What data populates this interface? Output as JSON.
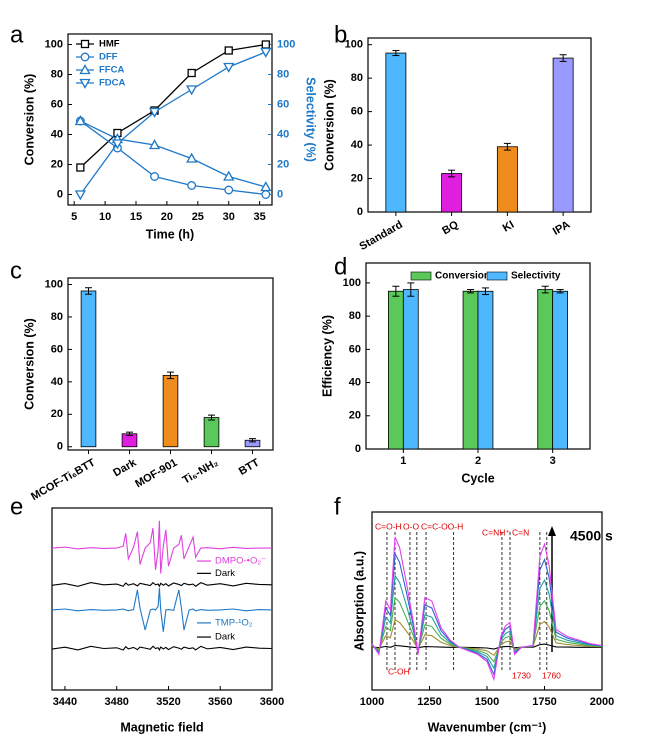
{
  "chart_data": [
    {
      "label": "a",
      "type": "line",
      "x_label": "Time (h)",
      "y_label": "Conversion (%)",
      "y2_label": "Selectivity (%)",
      "y2_color": "#1e78c8",
      "x": [
        6,
        12,
        18,
        24,
        30,
        36
      ],
      "xlim": [
        4,
        37
      ],
      "xticks": [
        5,
        10,
        15,
        20,
        25,
        30,
        35
      ],
      "ylim": [
        -7,
        107
      ],
      "yticks": [
        0,
        20,
        40,
        60,
        80,
        100
      ],
      "y2lim": [
        -7,
        107
      ],
      "y2ticks": [
        0,
        20,
        40,
        60,
        80,
        100
      ],
      "legend": "upper left",
      "series": [
        {
          "name": "HMF",
          "color": "#000000",
          "marker": "square",
          "values": [
            18,
            41,
            56,
            81,
            96,
            100
          ]
        },
        {
          "name": "DFF",
          "color": "#1e78c8",
          "marker": "circle",
          "axis": "y2",
          "values": [
            49,
            31,
            12,
            6,
            3,
            0
          ]
        },
        {
          "name": "FFCA",
          "color": "#1e78c8",
          "marker": "triangle-up",
          "axis": "y2",
          "values": [
            49,
            37,
            33,
            24,
            12,
            5
          ]
        },
        {
          "name": "FDCA",
          "color": "#1e78c8",
          "marker": "triangle-down",
          "axis": "y2",
          "values": [
            0,
            34,
            55,
            70,
            85,
            95
          ]
        }
      ]
    },
    {
      "label": "b",
      "type": "bar",
      "y_label": "Conversion (%)",
      "categories": [
        "Standard",
        "BQ",
        "KI",
        "IPA"
      ],
      "values": [
        95,
        23,
        39,
        92
      ],
      "errors": [
        1.5,
        2,
        2,
        2
      ],
      "colors": [
        "#4db8ff",
        "#e01ee0",
        "#f08c1e",
        "#9999ff"
      ],
      "ylim": [
        0,
        104
      ],
      "yticks": [
        0,
        20,
        40,
        60,
        80,
        100
      ]
    },
    {
      "label": "c",
      "type": "bar",
      "y_label": "Conversion (%)",
      "categories": [
        "MCOF-Ti₆BTT",
        "Dark",
        "MOF-901",
        "Ti₆-NH₂",
        "BTT"
      ],
      "values": [
        96,
        8,
        44,
        18,
        4
      ],
      "errors": [
        2,
        1,
        2,
        1.5,
        1
      ],
      "colors": [
        "#4db8ff",
        "#e01ee0",
        "#f08c1e",
        "#5ac85a",
        "#9999ff"
      ],
      "ylim": [
        -2,
        104
      ],
      "yticks": [
        0,
        20,
        40,
        60,
        80,
        100
      ]
    },
    {
      "label": "d",
      "type": "bar",
      "x_label": "Cycle",
      "y_label": "Efficiency (%)",
      "categories": [
        "1",
        "2",
        "3"
      ],
      "series": [
        {
          "name": "Conversion",
          "color": "#5ac85a",
          "values": [
            95,
            95,
            96
          ],
          "errors": [
            3,
            1,
            2
          ]
        },
        {
          "name": "Selectivity",
          "color": "#4db8ff",
          "values": [
            96,
            95,
            95
          ],
          "errors": [
            4,
            2,
            1
          ]
        }
      ],
      "ylim": [
        0,
        112
      ],
      "yticks": [
        0,
        20,
        40,
        60,
        80,
        100
      ],
      "legend": "upper center"
    },
    {
      "label": "e",
      "type": "line",
      "x_label": "Magnetic field",
      "x": [
        3430,
        3440,
        3450,
        3460,
        3470,
        3480,
        3485,
        3487,
        3489,
        3493,
        3496,
        3498,
        3502,
        3506,
        3508,
        3510,
        3512,
        3513,
        3514,
        3516,
        3518,
        3520,
        3524,
        3528,
        3530,
        3532,
        3536,
        3539,
        3541,
        3545,
        3550,
        3560,
        3570,
        3580,
        3590,
        3600
      ],
      "xlim": [
        3430,
        3600
      ],
      "xticks": [
        3440,
        3480,
        3520,
        3560,
        3600
      ],
      "ylim": [
        0,
        10
      ],
      "series": [
        {
          "name": "DMPO-•O₂⁻",
          "color": "#e040e0",
          "values": [
            7.8,
            7.85,
            7.75,
            7.82,
            7.78,
            7.8,
            7.9,
            8.6,
            7.2,
            7.85,
            8.7,
            6.9,
            7.8,
            8.1,
            8.9,
            6.6,
            7.7,
            9.3,
            6.4,
            7.9,
            8.8,
            6.8,
            7.8,
            8.0,
            8.5,
            7.2,
            7.9,
            8.4,
            7.3,
            7.8,
            7.82,
            7.76,
            7.84,
            7.78,
            7.8,
            7.8
          ]
        },
        {
          "name": "Dark",
          "color": "#000000",
          "values": [
            5.75,
            5.85,
            5.7,
            5.9,
            5.78,
            5.82,
            5.7,
            5.88,
            5.76,
            5.84,
            5.72,
            5.86,
            5.8,
            5.74,
            5.9,
            5.78,
            5.82,
            5.7,
            5.86,
            5.76,
            5.84,
            5.72,
            5.88,
            5.8,
            5.74,
            5.86,
            5.78,
            5.82,
            5.7,
            5.9,
            5.76,
            5.84,
            5.72,
            5.86,
            5.8,
            5.78
          ]
        },
        {
          "name": "TMP-¹O₂",
          "color": "#1e78c8",
          "values": [
            4.4,
            4.45,
            4.35,
            4.42,
            4.38,
            4.4,
            4.45,
            4.4,
            4.36,
            4.42,
            5.5,
            4.5,
            3.3,
            4.4,
            4.45,
            4.4,
            4.6,
            5.6,
            4.4,
            3.2,
            4.4,
            4.42,
            4.38,
            5.5,
            4.5,
            3.3,
            4.4,
            4.45,
            4.35,
            4.42,
            4.38,
            4.4,
            4.45,
            4.35,
            4.42,
            4.4
          ]
        },
        {
          "name": "Dark",
          "color": "#000000",
          "values": [
            2.25,
            2.35,
            2.2,
            2.4,
            2.28,
            2.32,
            2.2,
            2.38,
            2.26,
            2.34,
            2.22,
            2.36,
            2.3,
            2.24,
            2.4,
            2.28,
            2.32,
            2.2,
            2.36,
            2.26,
            2.34,
            2.22,
            2.38,
            2.3,
            2.24,
            2.36,
            2.28,
            2.32,
            2.2,
            2.4,
            2.26,
            2.34,
            2.22,
            2.36,
            2.3,
            2.28
          ]
        }
      ]
    },
    {
      "label": "f",
      "type": "line",
      "x_label": "Wavenumber (cm⁻¹)",
      "y_label": "Absorption (a.u.)",
      "x": [
        1000,
        1030,
        1060,
        1080,
        1100,
        1120,
        1150,
        1180,
        1200,
        1230,
        1260,
        1300,
        1340,
        1380,
        1420,
        1460,
        1500,
        1530,
        1560,
        1580,
        1600,
        1620,
        1650,
        1700,
        1730,
        1750,
        1770,
        1800,
        1850,
        1900,
        1950,
        2000
      ],
      "xlim": [
        1000,
        2000
      ],
      "xticks": [
        1000,
        1250,
        1500,
        1750,
        2000
      ],
      "ylim": [
        0,
        10
      ],
      "vlines": [
        1065,
        1100,
        1165,
        1195,
        1235,
        1355,
        1565,
        1600,
        1730,
        1760
      ],
      "annotations": [
        "C=O-H",
        "O-O",
        "C=C-OO-H",
        "C=NH⁺",
        "C=N",
        "C-OH",
        "1730",
        "1760",
        "4500 s"
      ],
      "series": [
        {
          "color": "#000000",
          "values": [
            2.42,
            2.38,
            2.45,
            2.4,
            2.5,
            2.48,
            2.44,
            2.4,
            2.38,
            2.44,
            2.43,
            2.41,
            2.4,
            2.4,
            2.39,
            2.38,
            2.36,
            2.3,
            2.42,
            2.44,
            2.45,
            2.38,
            2.4,
            2.4,
            2.55,
            2.58,
            2.52,
            2.42,
            2.41,
            2.4,
            2.4,
            2.4
          ]
        },
        {
          "color": "#a08c30",
          "values": [
            2.45,
            2.3,
            3.05,
            2.93,
            3.95,
            3.8,
            3.3,
            2.75,
            2.3,
            3.1,
            3.05,
            2.68,
            2.5,
            2.4,
            2.35,
            2.3,
            2.2,
            1.95,
            2.55,
            2.7,
            2.75,
            2.3,
            2.4,
            2.43,
            3.68,
            3.85,
            3.55,
            2.65,
            2.55,
            2.5,
            2.45,
            2.43
          ]
        },
        {
          "color": "#4caf50",
          "values": [
            2.49,
            2.22,
            3.57,
            3.35,
            5.19,
            4.92,
            4.02,
            3.03,
            2.22,
            3.66,
            3.57,
            2.9,
            2.58,
            2.4,
            2.31,
            2.22,
            2.04,
            1.59,
            2.67,
            2.94,
            3.03,
            2.22,
            2.4,
            2.45,
            4.7,
            5.01,
            4.47,
            2.85,
            2.67,
            2.58,
            2.49,
            2.45
          ]
        },
        {
          "color": "#20a0a0",
          "values": [
            2.53,
            2.14,
            4.09,
            3.77,
            6.43,
            6.04,
            4.74,
            3.31,
            2.14,
            4.22,
            4.09,
            3.12,
            2.66,
            2.4,
            2.27,
            2.14,
            1.88,
            1.23,
            2.79,
            3.18,
            3.31,
            2.14,
            2.4,
            2.47,
            5.72,
            6.17,
            5.39,
            3.05,
            2.79,
            2.66,
            2.53,
            2.47
          ]
        },
        {
          "color": "#3060d0",
          "values": [
            2.57,
            2.06,
            4.61,
            4.19,
            7.67,
            7.16,
            5.46,
            3.59,
            2.06,
            4.78,
            4.61,
            3.34,
            2.74,
            2.4,
            2.23,
            2.06,
            1.72,
            0.87,
            2.91,
            3.42,
            3.59,
            2.06,
            2.4,
            2.49,
            6.74,
            7.33,
            6.31,
            3.25,
            2.91,
            2.74,
            2.57,
            2.49
          ]
        },
        {
          "color": "#e040f0",
          "values": [
            2.6,
            2.0,
            5.0,
            4.5,
            8.6,
            8.0,
            6.0,
            3.8,
            2.0,
            5.2,
            5.0,
            3.5,
            2.8,
            2.4,
            2.2,
            2.0,
            1.6,
            0.6,
            3.0,
            3.6,
            3.8,
            2.0,
            2.4,
            2.5,
            7.5,
            8.2,
            7.0,
            3.4,
            3.0,
            2.8,
            2.6,
            2.5
          ]
        }
      ]
    }
  ]
}
